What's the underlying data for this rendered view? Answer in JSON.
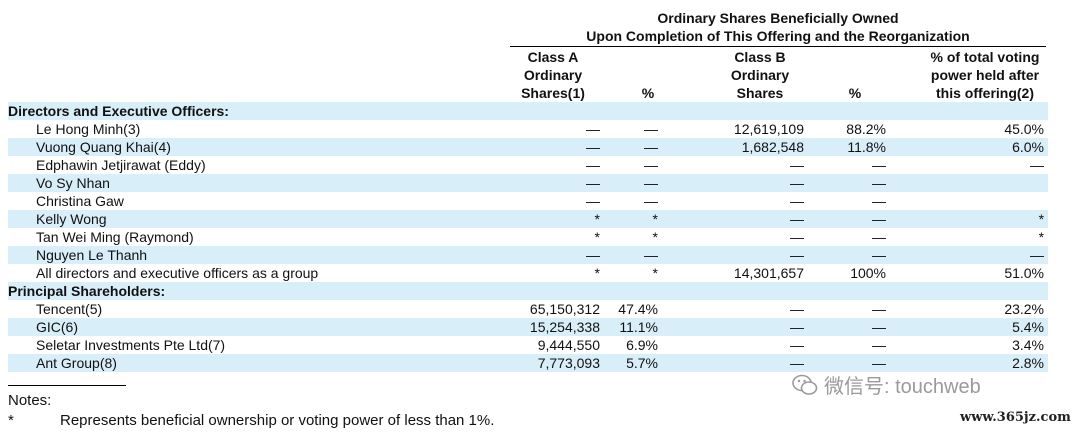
{
  "header": {
    "line1": "Ordinary Shares Beneficially Owned",
    "line2": "Upon Completion of This Offering and the Reorganization"
  },
  "columns": {
    "class_a": [
      "Class A",
      "Ordinary",
      "Shares(1)"
    ],
    "class_a_pct": "%",
    "class_b": [
      "Class B",
      "Ordinary",
      "Shares"
    ],
    "class_b_pct": "%",
    "voting": [
      "% of total voting",
      "power held after",
      "this offering(2)"
    ]
  },
  "rows": [
    {
      "type": "section",
      "name": "Directors and Executive Officers:"
    },
    {
      "name": "Le Hong Minh(3)",
      "a": "—",
      "a_pct": "—",
      "b": "12,619,109",
      "b_pct": "88.2%",
      "voting": "45.0%"
    },
    {
      "name": "Vuong Quang Khai(4)",
      "a": "—",
      "a_pct": "—",
      "b": "1,682,548",
      "b_pct": "11.8%",
      "voting": "6.0%"
    },
    {
      "name": "Edphawin Jetjirawat (Eddy)",
      "a": "—",
      "a_pct": "—",
      "b": "—",
      "b_pct": "—",
      "voting": "—"
    },
    {
      "name": "Vo Sy Nhan",
      "a": "—",
      "a_pct": "—",
      "b": "—",
      "b_pct": "—",
      "voting": ""
    },
    {
      "name": "Christina Gaw",
      "a": "—",
      "a_pct": "—",
      "b": "—",
      "b_pct": "—",
      "voting": ""
    },
    {
      "name": "Kelly Wong",
      "a": "*",
      "a_pct": "*",
      "b": "—",
      "b_pct": "—",
      "voting": "*"
    },
    {
      "name": "Tan Wei Ming (Raymond)",
      "a": "*",
      "a_pct": "*",
      "b": "—",
      "b_pct": "—",
      "voting": "*"
    },
    {
      "name": "Nguyen Le Thanh",
      "a": "—",
      "a_pct": "—",
      "b": "—",
      "b_pct": "—",
      "voting": "—"
    },
    {
      "name": "All directors and executive officers as a group",
      "a": "*",
      "a_pct": "*",
      "b": "14,301,657",
      "b_pct": "100%",
      "voting": "51.0%"
    },
    {
      "type": "section",
      "name": "Principal Shareholders:"
    },
    {
      "name": "Tencent(5)",
      "a": "65,150,312",
      "a_pct": "47.4%",
      "b": "—",
      "b_pct": "—",
      "voting": "23.2%"
    },
    {
      "name": "GIC(6)",
      "a": "15,254,338",
      "a_pct": "11.1%",
      "b": "—",
      "b_pct": "—",
      "voting": "5.4%"
    },
    {
      "name": "Seletar Investments Pte Ltd(7)",
      "a": "9,444,550",
      "a_pct": "6.9%",
      "b": "—",
      "b_pct": "—",
      "voting": "3.4%"
    },
    {
      "name": "Ant Group(8)",
      "a": "7,773,093",
      "a_pct": "5.7%",
      "b": "—",
      "b_pct": "—",
      "voting": "2.8%"
    }
  ],
  "notes": {
    "title": "Notes:",
    "star": "*",
    "star_text": "Represents beneficial ownership or voting power of less than 1%."
  },
  "watermark": {
    "text": "微信号: touchweb",
    "site": "www.365jz.com"
  }
}
